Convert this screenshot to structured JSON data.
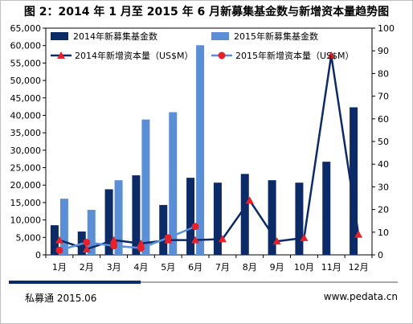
{
  "chart_data": {
    "type": "bar",
    "title": "图 2：2014 年 1 月至 2015 年 6 月新募集基金数与新增资本量趋势图",
    "categories": [
      "1月",
      "2月",
      "3月",
      "4月",
      "5月",
      "6月",
      "7月",
      "8月",
      "9月",
      "10月",
      "11月",
      "12月"
    ],
    "left_axis": {
      "ticks": [
        "0",
        "5,000",
        "10,000",
        "15,000",
        "20,000",
        "25,000",
        "30,000",
        "35,000",
        "40,000",
        "45,000",
        "50,000",
        "55,000",
        "60,000",
        "65,000"
      ],
      "ylim": [
        0,
        65000
      ]
    },
    "right_axis": {
      "ticks": [
        "0",
        "10",
        "20",
        "30",
        "40",
        "50",
        "60",
        "70",
        "80",
        "90",
        "100"
      ],
      "ylim": [
        0,
        100
      ]
    },
    "series": [
      {
        "name": "2014年新募集基金数",
        "kind": "bar",
        "axis": "left",
        "color": "#0b2a66",
        "values": [
          8500,
          6700,
          18800,
          22800,
          14300,
          22100,
          20700,
          23200,
          21400,
          20700,
          26700,
          42300
        ]
      },
      {
        "name": "2015年新募集基金数",
        "kind": "bar",
        "axis": "left",
        "color": "#5a8fd8",
        "values": [
          16100,
          12900,
          21400,
          38800,
          40900,
          60100,
          null,
          null,
          null,
          null,
          null,
          null
        ]
      },
      {
        "name": "2014年新增资本量（US$M）",
        "kind": "line",
        "axis": "right",
        "color": "#0b2a66",
        "marker": "triangle",
        "marker_color": "#e8202a",
        "values": [
          6.5,
          2.5,
          6.5,
          5,
          6.5,
          6.5,
          7,
          24,
          6,
          7.5,
          88,
          9
        ]
      },
      {
        "name": "2015年新增资本量（US$M）",
        "kind": "line",
        "axis": "right",
        "color": "#5a8fd8",
        "marker": "circle",
        "marker_color": "#e8202a",
        "values": [
          2,
          5.5,
          4,
          3,
          7.5,
          12.5,
          null,
          null,
          null,
          null,
          null,
          null
        ]
      }
    ],
    "legend_position": "top-inside",
    "grid": false
  },
  "footer": {
    "source": "私募通 2015.06",
    "website": "www.pedata.cn"
  },
  "colors": {
    "footer_bar_dark": "#0b2a66",
    "footer_bar_light": "#a9a9a9"
  }
}
